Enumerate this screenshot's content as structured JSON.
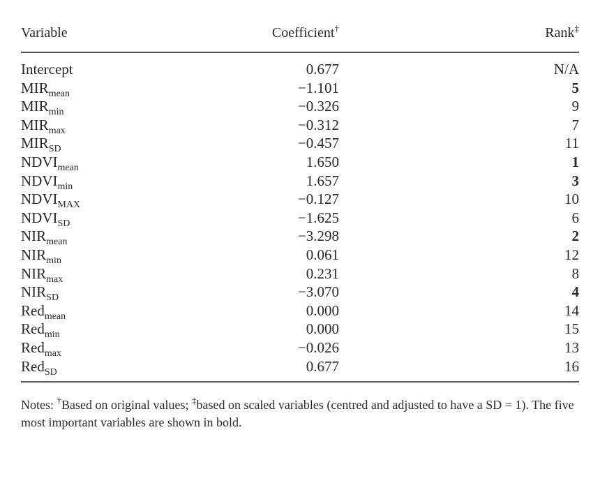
{
  "table": {
    "headers": {
      "variable": "Variable",
      "coefficient": "Coefficient",
      "coefficient_mark": "†",
      "rank": "Rank",
      "rank_mark": "‡"
    },
    "rows": [
      {
        "base": "Intercept",
        "sub": "",
        "coef": "0.677",
        "rank": "N/A",
        "bold": false
      },
      {
        "base": "MIR",
        "sub": "mean",
        "coef": "−1.101",
        "rank": "5",
        "bold": true
      },
      {
        "base": "MIR",
        "sub": "min",
        "coef": "−0.326",
        "rank": "9",
        "bold": false
      },
      {
        "base": "MIR",
        "sub": "max",
        "coef": "−0.312",
        "rank": "7",
        "bold": false
      },
      {
        "base": "MIR",
        "sub": "SD",
        "coef": "−0.457",
        "rank": "11",
        "bold": false
      },
      {
        "base": "NDVI",
        "sub": "mean",
        "coef": "1.650",
        "rank": "1",
        "bold": true
      },
      {
        "base": "NDVI",
        "sub": "min",
        "coef": "1.657",
        "rank": "3",
        "bold": true
      },
      {
        "base": "NDVI",
        "sub": "MAX",
        "coef": "−0.127",
        "rank": "10",
        "bold": false
      },
      {
        "base": "NDVI",
        "sub": "SD",
        "coef": "−1.625",
        "rank": "6",
        "bold": false
      },
      {
        "base": "NIR",
        "sub": "mean",
        "coef": "−3.298",
        "rank": "2",
        "bold": true
      },
      {
        "base": "NIR",
        "sub": "min",
        "coef": "0.061",
        "rank": "12",
        "bold": false
      },
      {
        "base": "NIR",
        "sub": "max",
        "coef": "0.231",
        "rank": "8",
        "bold": false
      },
      {
        "base": "NIR",
        "sub": "SD",
        "coef": "−3.070",
        "rank": "4",
        "bold": true
      },
      {
        "base": "Red",
        "sub": "mean",
        "coef": "0.000",
        "rank": "14",
        "bold": false
      },
      {
        "base": "Red",
        "sub": "min",
        "coef": "0.000",
        "rank": "15",
        "bold": false
      },
      {
        "base": "Red",
        "sub": "max",
        "coef": "−0.026",
        "rank": "13",
        "bold": false
      },
      {
        "base": "Red",
        "sub": "SD",
        "coef": "0.677",
        "rank": "16",
        "bold": false
      }
    ]
  },
  "notes": {
    "prefix": "Notes: ",
    "mark1": "†",
    "text1": "Based on original values; ",
    "mark2": "‡",
    "text2": "based on scaled variables (centred and adjusted to have a SD = 1). The five most important variables are shown in bold."
  }
}
